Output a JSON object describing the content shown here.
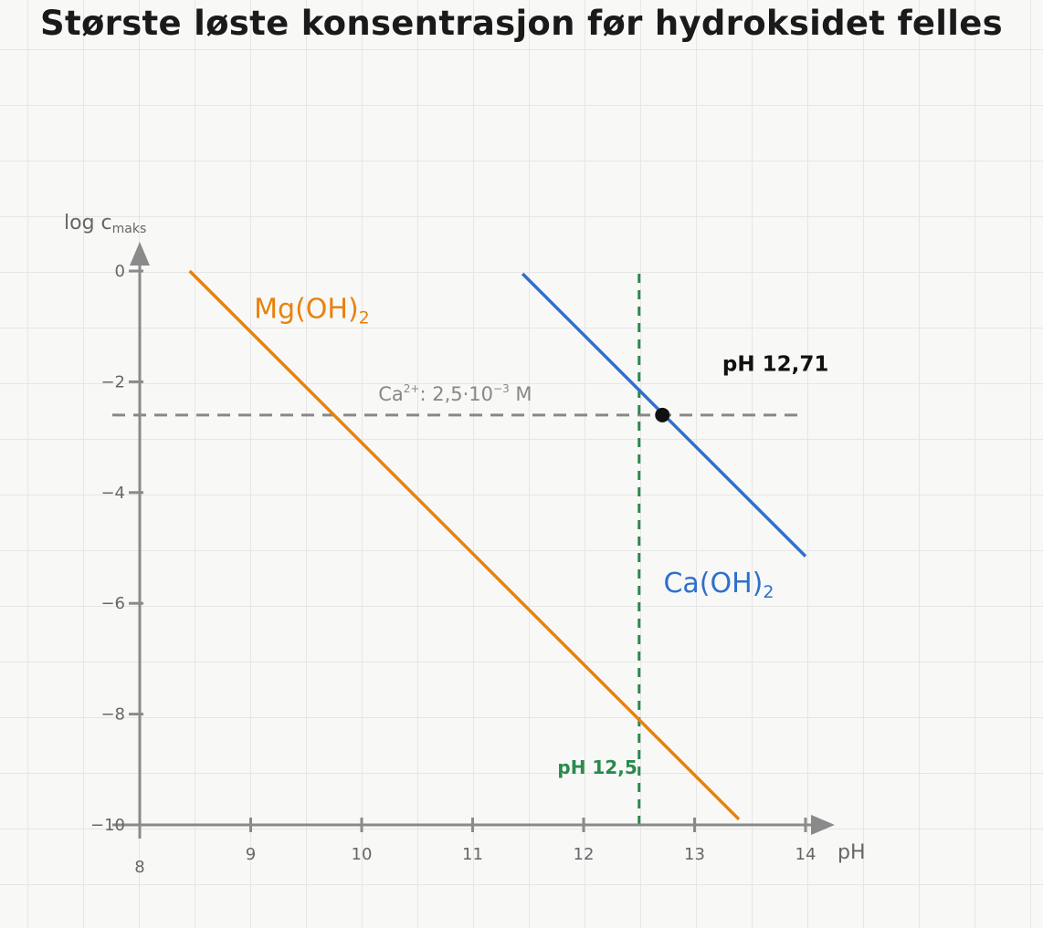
{
  "chart_data": {
    "type": "line",
    "title": "Største løste konsentrasjon før hydroksidet felles",
    "xlabel": "pH",
    "ylabel": "log c",
    "ylabel_sub": "maks",
    "xlim": [
      8,
      14
    ],
    "ylim": [
      -10,
      0
    ],
    "xticks": [
      8,
      9,
      10,
      11,
      12,
      13,
      14
    ],
    "xtick_labels": [
      "8",
      "9",
      "10",
      "11",
      "12",
      "13",
      "14"
    ],
    "yticks": [
      0,
      -2,
      -4,
      -6,
      -8,
      -10
    ],
    "ytick_labels": [
      "0",
      "−2",
      "−4",
      "−6",
      "−8",
      "−10"
    ],
    "grid": true,
    "series": [
      {
        "name": "Mg(OH)",
        "subscript": "2",
        "color": "#e8820c",
        "x": [
          8.45,
          13.4
        ],
        "y": [
          0,
          -9.9
        ]
      },
      {
        "name": "Ca(OH)",
        "subscript": "2",
        "color": "#2f6fce",
        "x": [
          11.45,
          14.0
        ],
        "y": [
          -0.05,
          -5.15
        ]
      }
    ],
    "reference_lines": [
      {
        "orientation": "horizontal",
        "y": -2.6,
        "x_range": [
          8,
          14
        ],
        "color": "#888888",
        "label_main": "Ca",
        "label_sup": "2+",
        "label_mid": ": 2,5·10",
        "label_exp": "−3",
        "label_unit": " M"
      },
      {
        "orientation": "vertical",
        "x": 12.5,
        "y_range": [
          -10,
          0
        ],
        "color": "#2a8a4e",
        "label": "pH 12,5"
      }
    ],
    "points": [
      {
        "x": 12.71,
        "y": -2.6,
        "label": "pH 12,71",
        "color": "#111111"
      }
    ]
  }
}
